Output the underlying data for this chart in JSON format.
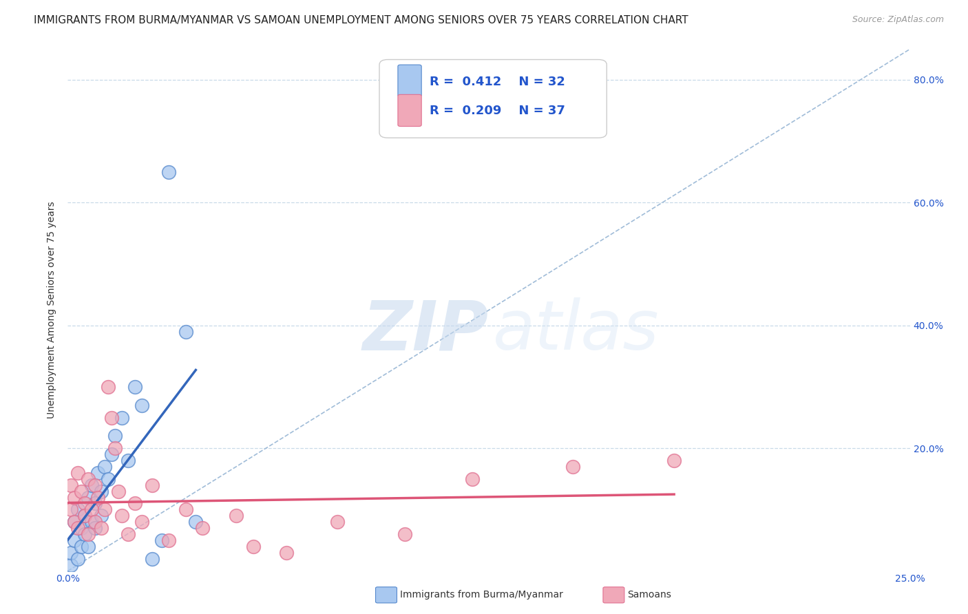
{
  "title": "IMMIGRANTS FROM BURMA/MYANMAR VS SAMOAN UNEMPLOYMENT AMONG SENIORS OVER 75 YEARS CORRELATION CHART",
  "source": "Source: ZipAtlas.com",
  "ylabel": "Unemployment Among Seniors over 75 years",
  "xlim": [
    0.0,
    0.25
  ],
  "ylim": [
    0.0,
    0.85
  ],
  "R_blue": 0.412,
  "N_blue": 32,
  "R_pink": 0.209,
  "N_pink": 37,
  "blue_color": "#a8c8f0",
  "pink_color": "#f0a8b8",
  "blue_edge_color": "#5588cc",
  "pink_edge_color": "#e07090",
  "blue_line_color": "#3366bb",
  "pink_line_color": "#dd5577",
  "grid_color": "#c8dae8",
  "diag_color": "#a0bcd8",
  "background_color": "#ffffff",
  "title_fontsize": 11,
  "axis_label_fontsize": 10,
  "tick_fontsize": 10,
  "legend_fontsize": 13,
  "blue_scatter_x": [
    0.001,
    0.001,
    0.002,
    0.002,
    0.003,
    0.003,
    0.004,
    0.004,
    0.005,
    0.005,
    0.006,
    0.006,
    0.007,
    0.007,
    0.008,
    0.008,
    0.009,
    0.01,
    0.01,
    0.011,
    0.012,
    0.013,
    0.014,
    0.016,
    0.018,
    0.02,
    0.022,
    0.025,
    0.028,
    0.03,
    0.035,
    0.038
  ],
  "blue_scatter_y": [
    0.01,
    0.03,
    0.05,
    0.08,
    0.02,
    0.1,
    0.04,
    0.07,
    0.09,
    0.06,
    0.12,
    0.04,
    0.08,
    0.14,
    0.11,
    0.07,
    0.16,
    0.13,
    0.09,
    0.17,
    0.15,
    0.19,
    0.22,
    0.25,
    0.18,
    0.3,
    0.27,
    0.02,
    0.05,
    0.65,
    0.39,
    0.08
  ],
  "pink_scatter_x": [
    0.001,
    0.001,
    0.002,
    0.002,
    0.003,
    0.003,
    0.004,
    0.005,
    0.005,
    0.006,
    0.006,
    0.007,
    0.008,
    0.008,
    0.009,
    0.01,
    0.011,
    0.012,
    0.013,
    0.014,
    0.015,
    0.016,
    0.018,
    0.02,
    0.022,
    0.025,
    0.03,
    0.035,
    0.04,
    0.05,
    0.055,
    0.065,
    0.08,
    0.1,
    0.12,
    0.15,
    0.18
  ],
  "pink_scatter_y": [
    0.1,
    0.14,
    0.08,
    0.12,
    0.16,
    0.07,
    0.13,
    0.11,
    0.09,
    0.15,
    0.06,
    0.1,
    0.14,
    0.08,
    0.12,
    0.07,
    0.1,
    0.3,
    0.25,
    0.2,
    0.13,
    0.09,
    0.06,
    0.11,
    0.08,
    0.14,
    0.05,
    0.1,
    0.07,
    0.09,
    0.04,
    0.03,
    0.08,
    0.06,
    0.15,
    0.17,
    0.18
  ]
}
